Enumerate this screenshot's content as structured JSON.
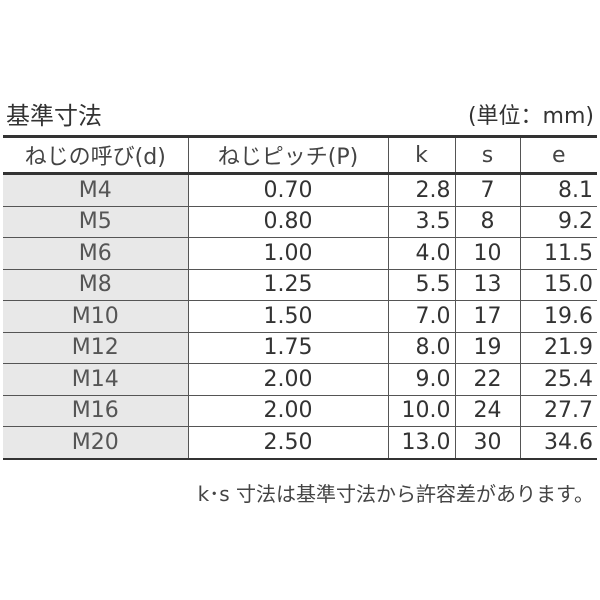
{
  "title": "基準寸法",
  "unit": "(単位：mm)",
  "table": {
    "headers": [
      "ねじの呼び(d)",
      "ねじピッチ(P)",
      "k",
      "s",
      "e"
    ],
    "rows": [
      [
        "M4",
        "0.70",
        "2.8",
        "7",
        "8.1"
      ],
      [
        "M5",
        "0.80",
        "3.5",
        "8",
        "9.2"
      ],
      [
        "M6",
        "1.00",
        "4.0",
        "10",
        "11.5"
      ],
      [
        "M8",
        "1.25",
        "5.5",
        "13",
        "15.0"
      ],
      [
        "M10",
        "1.50",
        "7.0",
        "17",
        "19.6"
      ],
      [
        "M12",
        "1.75",
        "8.0",
        "19",
        "21.9"
      ],
      [
        "M14",
        "2.00",
        "9.0",
        "22",
        "25.4"
      ],
      [
        "M16",
        "2.00",
        "10.0",
        "24",
        "27.7"
      ],
      [
        "M20",
        "2.50",
        "13.0",
        "30",
        "34.6"
      ]
    ]
  },
  "note": "k･s 寸法は基準寸法から許容差があります。",
  "colors": {
    "first_column_shade": "#e8e8e8",
    "text": "#333333"
  }
}
